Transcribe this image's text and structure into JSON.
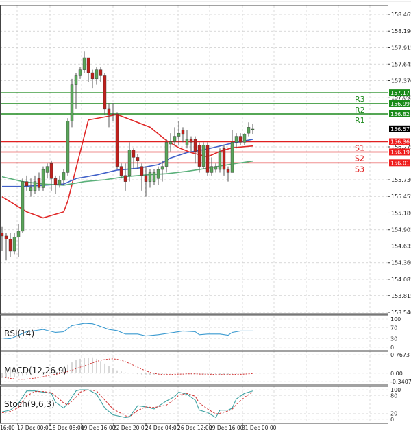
{
  "chart_data": [
    {
      "type": "candlestick",
      "panel": "price",
      "y_ticks": [
        "158.465",
        "158.190",
        "157.915",
        "157.645",
        "157.370",
        "157.095",
        "156.275",
        "155.730",
        "155.455",
        "155.180",
        "154.905",
        "154.635",
        "154.360",
        "154.085",
        "153.815",
        "153.540"
      ],
      "ylim": [
        153.54,
        158.465
      ],
      "grid": true,
      "current_price": {
        "value": "156.572",
        "color": "#000000"
      },
      "levels": [
        {
          "name": "R3",
          "value": "157.170",
          "color": "#1e8a1e"
        },
        {
          "name": "R2",
          "value": "156.990",
          "color": "#1e8a1e"
        },
        {
          "name": "R1",
          "value": "156.820",
          "color": "#1e8a1e"
        },
        {
          "name": "S1",
          "value": "156.360",
          "color": "#e02020"
        },
        {
          "name": "S2",
          "value": "156.190",
          "color": "#e02020"
        },
        {
          "name": "S3",
          "value": "156.010",
          "color": "#e02020"
        }
      ],
      "candles": [
        [
          154.85,
          154.95,
          154.55,
          154.8
        ],
        [
          154.8,
          154.85,
          154.4,
          154.75
        ],
        [
          154.75,
          154.85,
          154.45,
          154.55
        ],
        [
          154.55,
          154.85,
          154.5,
          154.78
        ],
        [
          154.78,
          155.0,
          154.45,
          154.88
        ],
        [
          154.88,
          155.75,
          154.85,
          155.7
        ],
        [
          155.7,
          155.8,
          155.55,
          155.63
        ],
        [
          155.55,
          155.75,
          155.45,
          155.6
        ],
        [
          155.55,
          155.8,
          155.5,
          155.7
        ],
        [
          155.75,
          155.85,
          155.55,
          155.6
        ],
        [
          155.6,
          155.95,
          155.55,
          155.9
        ],
        [
          155.85,
          156.0,
          155.75,
          155.95
        ],
        [
          156.0,
          156.05,
          155.55,
          155.75
        ],
        [
          155.75,
          155.8,
          155.5,
          155.65
        ],
        [
          155.65,
          155.8,
          155.6,
          155.72
        ],
        [
          155.72,
          155.9,
          155.65,
          155.85
        ],
        [
          155.85,
          156.75,
          155.8,
          156.7
        ],
        [
          156.7,
          157.4,
          156.6,
          157.3
        ],
        [
          157.3,
          157.5,
          156.9,
          157.45
        ],
        [
          157.45,
          157.6,
          157.4,
          157.55
        ],
        [
          157.55,
          157.85,
          157.5,
          157.75
        ],
        [
          157.75,
          157.75,
          157.35,
          157.5
        ],
        [
          157.5,
          157.55,
          157.25,
          157.4
        ],
        [
          157.4,
          157.6,
          157.3,
          157.55
        ],
        [
          157.55,
          157.6,
          157.35,
          157.45
        ],
        [
          157.45,
          157.5,
          156.8,
          156.9
        ],
        [
          156.9,
          157.0,
          156.6,
          156.8
        ],
        [
          156.82,
          157.0,
          156.7,
          156.8
        ],
        [
          156.82,
          156.85,
          155.9,
          155.95
        ],
        [
          155.95,
          156.0,
          155.75,
          155.8
        ],
        [
          155.8,
          156.0,
          155.55,
          155.7
        ],
        [
          155.8,
          156.35,
          155.7,
          156.22
        ],
        [
          156.22,
          156.25,
          155.9,
          156.1
        ],
        [
          156.1,
          156.15,
          155.9,
          156.05
        ],
        [
          155.95,
          156.0,
          155.55,
          155.8
        ],
        [
          155.8,
          155.95,
          155.45,
          155.7
        ],
        [
          155.7,
          155.9,
          155.6,
          155.85
        ],
        [
          155.7,
          155.9,
          155.65,
          155.85
        ],
        [
          155.75,
          155.95,
          155.65,
          155.9
        ],
        [
          155.9,
          156.05,
          155.7,
          155.95
        ],
        [
          155.95,
          156.4,
          155.85,
          156.35
        ],
        [
          156.32,
          156.5,
          156.2,
          156.36
        ],
        [
          156.36,
          156.6,
          156.3,
          156.45
        ],
        [
          156.45,
          156.7,
          156.3,
          156.5
        ],
        [
          156.55,
          156.6,
          156.35,
          156.48
        ],
        [
          156.3,
          156.55,
          156.25,
          156.4
        ],
        [
          156.4,
          156.45,
          156.2,
          156.35
        ],
        [
          156.4,
          156.45,
          156.0,
          156.2
        ],
        [
          156.3,
          156.35,
          155.85,
          155.95
        ],
        [
          155.95,
          156.35,
          155.9,
          156.3
        ],
        [
          156.3,
          156.35,
          155.8,
          155.85
        ],
        [
          155.85,
          156.1,
          155.8,
          155.95
        ],
        [
          155.9,
          156.0,
          155.85,
          155.95
        ],
        [
          155.9,
          156.25,
          155.85,
          156.2
        ],
        [
          156.25,
          156.3,
          155.8,
          155.9
        ],
        [
          155.9,
          155.95,
          155.7,
          155.85
        ],
        [
          155.85,
          156.55,
          155.85,
          156.35
        ],
        [
          156.35,
          156.5,
          156.25,
          156.45
        ],
        [
          156.45,
          156.5,
          156.3,
          156.35
        ],
        [
          156.35,
          156.5,
          156.3,
          156.48
        ],
        [
          156.5,
          156.68,
          156.45,
          156.6
        ],
        [
          156.57,
          156.65,
          156.48,
          156.57
        ]
      ],
      "candle_format": [
        "open",
        "high",
        "low",
        "close"
      ],
      "up_color": "#5aa55a",
      "down_color": "#c0201c",
      "moving_averages": [
        {
          "color": "#e02828",
          "points": [
            [
              0,
              155.45
            ],
            [
              6,
              155.2
            ],
            [
              10,
              155.1
            ],
            [
              15,
              155.2
            ],
            [
              16,
              155.38
            ],
            [
              18,
              155.92
            ],
            [
              21,
              156.72
            ],
            [
              25,
              156.77
            ],
            [
              28,
              156.81
            ],
            [
              36,
              156.6
            ],
            [
              40,
              156.38
            ],
            [
              43,
              156.26
            ],
            [
              46,
              156.18
            ],
            [
              50,
              156.11
            ],
            [
              53,
              156.2
            ],
            [
              56,
              156.26
            ],
            [
              61,
              156.29
            ]
          ]
        },
        {
          "color": "#4060c8",
          "points": [
            [
              0,
              155.62
            ],
            [
              5,
              155.62
            ],
            [
              10,
              155.64
            ],
            [
              15,
              155.66
            ],
            [
              18,
              155.75
            ],
            [
              23,
              155.81
            ],
            [
              28,
              155.89
            ],
            [
              33,
              155.92
            ],
            [
              38,
              155.98
            ],
            [
              41,
              156.09
            ],
            [
              45,
              156.18
            ],
            [
              50,
              156.24
            ],
            [
              55,
              156.32
            ],
            [
              61,
              156.4
            ]
          ]
        },
        {
          "color": "#5ab07a",
          "points": [
            [
              0,
              155.78
            ],
            [
              5,
              155.7
            ],
            [
              10,
              155.66
            ],
            [
              15,
              155.64
            ],
            [
              20,
              155.7
            ],
            [
              25,
              155.73
            ],
            [
              30,
              155.78
            ],
            [
              35,
              155.81
            ],
            [
              40,
              155.83
            ],
            [
              45,
              155.87
            ],
            [
              50,
              155.92
            ],
            [
              55,
              155.98
            ],
            [
              61,
              156.04
            ]
          ]
        }
      ]
    },
    {
      "type": "line",
      "panel": "rsi",
      "title": "RSI(14)",
      "y_ticks": [
        "100",
        "70",
        "30",
        "0"
      ],
      "ylim": [
        0,
        100
      ],
      "color": "#3a9ad0",
      "points": [
        [
          0,
          32.8
        ],
        [
          2,
          30.3
        ],
        [
          4,
          42.6
        ],
        [
          6,
          54.9
        ],
        [
          10,
          63.1
        ],
        [
          13,
          52.5
        ],
        [
          15,
          54.9
        ],
        [
          17,
          77
        ],
        [
          20,
          85.2
        ],
        [
          22,
          83.6
        ],
        [
          24,
          73.8
        ],
        [
          26,
          63.1
        ],
        [
          28,
          59
        ],
        [
          30,
          46.7
        ],
        [
          33,
          46.7
        ],
        [
          35,
          40.2
        ],
        [
          38,
          44.3
        ],
        [
          41,
          50.8
        ],
        [
          44,
          57.4
        ],
        [
          47,
          54.9
        ],
        [
          48,
          44.3
        ],
        [
          50,
          46.7
        ],
        [
          53,
          46.7
        ],
        [
          55,
          42.6
        ],
        [
          56,
          52.5
        ],
        [
          58,
          57.4
        ],
        [
          61,
          57.4
        ]
      ]
    },
    {
      "type": "bar+line",
      "panel": "macd",
      "title": "MACD(12,26,9)",
      "y_ticks": [
        "0.7673",
        "0.00",
        "-0.3407"
      ],
      "ylim": [
        -0.3407,
        0.7673
      ],
      "histogram_color": "#b0b0b0",
      "signal_color": "#d03030",
      "histogram": [
        -0.2,
        -0.2,
        -0.18,
        -0.15,
        -0.12,
        -0.1,
        -0.08,
        -0.03,
        0.0,
        0.02,
        0.05,
        0.08,
        0.1,
        0.12,
        0.15,
        0.25,
        0.35,
        0.45,
        0.55,
        0.6,
        0.63,
        0.65,
        0.66,
        0.6,
        0.5,
        0.4,
        0.3,
        0.2,
        0.12,
        0.08,
        0.04,
        0.02,
        0.0,
        -0.03,
        -0.05,
        -0.05,
        -0.06,
        -0.05,
        -0.04,
        -0.03,
        -0.02,
        -0.01,
        0.0,
        0.01,
        0.0,
        -0.01,
        -0.02,
        -0.03,
        -0.04,
        -0.05,
        -0.05,
        -0.04,
        -0.05,
        -0.06,
        -0.06,
        -0.05,
        -0.03,
        -0.02,
        -0.01,
        0.0,
        0.01,
        0.02
      ],
      "signal": [
        -0.15,
        -0.18,
        -0.21,
        -0.23,
        -0.25,
        -0.25,
        -0.24,
        -0.22,
        -0.2,
        -0.17,
        -0.14,
        -0.1,
        -0.07,
        -0.04,
        -0.01,
        0.03,
        0.08,
        0.13,
        0.19,
        0.25,
        0.31,
        0.37,
        0.43,
        0.49,
        0.54,
        0.57,
        0.59,
        0.6,
        0.58,
        0.54,
        0.48,
        0.41,
        0.33,
        0.25,
        0.17,
        0.1,
        0.04,
        0.0,
        -0.03,
        -0.05,
        -0.05,
        -0.05,
        -0.04,
        -0.03,
        -0.03,
        -0.02,
        -0.02,
        -0.02,
        -0.03,
        -0.03,
        -0.04,
        -0.04,
        -0.05,
        -0.05,
        -0.05,
        -0.05,
        -0.05,
        -0.04,
        -0.04,
        -0.03,
        -0.02,
        -0.01
      ]
    },
    {
      "type": "line",
      "panel": "stoch",
      "title": "Stoch(9,6,3)",
      "y_ticks": [
        "100",
        "80",
        "20",
        "0"
      ],
      "ylim": [
        0,
        100
      ],
      "main_color": "#3aa0a0",
      "signal_color": "#d03030",
      "main": [
        [
          0,
          25
        ],
        [
          2,
          31
        ],
        [
          4,
          54
        ],
        [
          6,
          96
        ],
        [
          8,
          96
        ],
        [
          10,
          92
        ],
        [
          12,
          88
        ],
        [
          13,
          58
        ],
        [
          15,
          38
        ],
        [
          16,
          54
        ],
        [
          18,
          96
        ],
        [
          19,
          100
        ],
        [
          21,
          100
        ],
        [
          23,
          85
        ],
        [
          25,
          38
        ],
        [
          27,
          15
        ],
        [
          30,
          6
        ],
        [
          31,
          8
        ],
        [
          33,
          46
        ],
        [
          35,
          42
        ],
        [
          37,
          35
        ],
        [
          40,
          62
        ],
        [
          42,
          77
        ],
        [
          43,
          92
        ],
        [
          45,
          85
        ],
        [
          47,
          65
        ],
        [
          48,
          31
        ],
        [
          50,
          23
        ],
        [
          52,
          6
        ],
        [
          53,
          31
        ],
        [
          55,
          31
        ],
        [
          56,
          38
        ],
        [
          57,
          69
        ],
        [
          59,
          88
        ],
        [
          61,
          96
        ]
      ],
      "signal": [
        [
          0,
          22
        ],
        [
          2,
          26
        ],
        [
          4,
          40
        ],
        [
          6,
          80
        ],
        [
          8,
          94
        ],
        [
          10,
          94
        ],
        [
          12,
          90
        ],
        [
          13,
          80
        ],
        [
          15,
          55
        ],
        [
          16,
          48
        ],
        [
          18,
          75
        ],
        [
          19,
          92
        ],
        [
          21,
          100
        ],
        [
          23,
          96
        ],
        [
          25,
          65
        ],
        [
          27,
          35
        ],
        [
          30,
          12
        ],
        [
          31,
          8
        ],
        [
          33,
          30
        ],
        [
          35,
          42
        ],
        [
          37,
          40
        ],
        [
          40,
          48
        ],
        [
          42,
          68
        ],
        [
          43,
          82
        ],
        [
          45,
          88
        ],
        [
          47,
          78
        ],
        [
          48,
          55
        ],
        [
          50,
          35
        ],
        [
          52,
          18
        ],
        [
          53,
          20
        ],
        [
          55,
          28
        ],
        [
          56,
          34
        ],
        [
          57,
          50
        ],
        [
          59,
          75
        ],
        [
          61,
          92
        ]
      ]
    }
  ],
  "time_axis": {
    "labels": [
      "16:00",
      "17 Dec 00:00",
      "18 Dec 08:00",
      "19 Dec 16:00",
      "22 Dec 20:00",
      "24 Dec 04:00",
      "26 Dec 12:00",
      "29 Dec 16:00",
      "31 Dec 00:00"
    ]
  }
}
